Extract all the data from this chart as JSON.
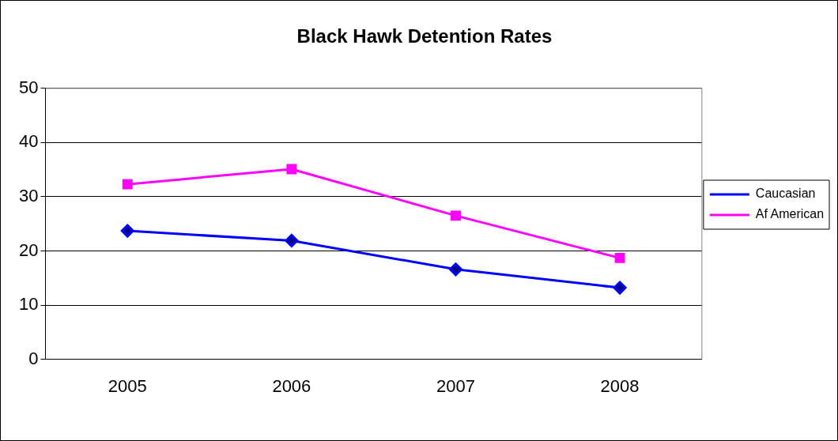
{
  "chart_data": {
    "type": "line",
    "title": "Black Hawk Detention Rates",
    "categories": [
      "2005",
      "2006",
      "2007",
      "2008"
    ],
    "series": [
      {
        "name": "Caucasian",
        "color": "#0000ff",
        "marker": "diamond",
        "values": [
          23.7,
          21.9,
          16.6,
          13.2
        ]
      },
      {
        "name": "Af American",
        "color": "#ff00ff",
        "marker": "square",
        "values": [
          32.3,
          35.1,
          26.5,
          18.7
        ]
      }
    ],
    "ylim": [
      0,
      50
    ],
    "yticks": [
      0,
      10,
      20,
      30,
      40,
      50
    ],
    "grid": "y",
    "legend": "right"
  }
}
